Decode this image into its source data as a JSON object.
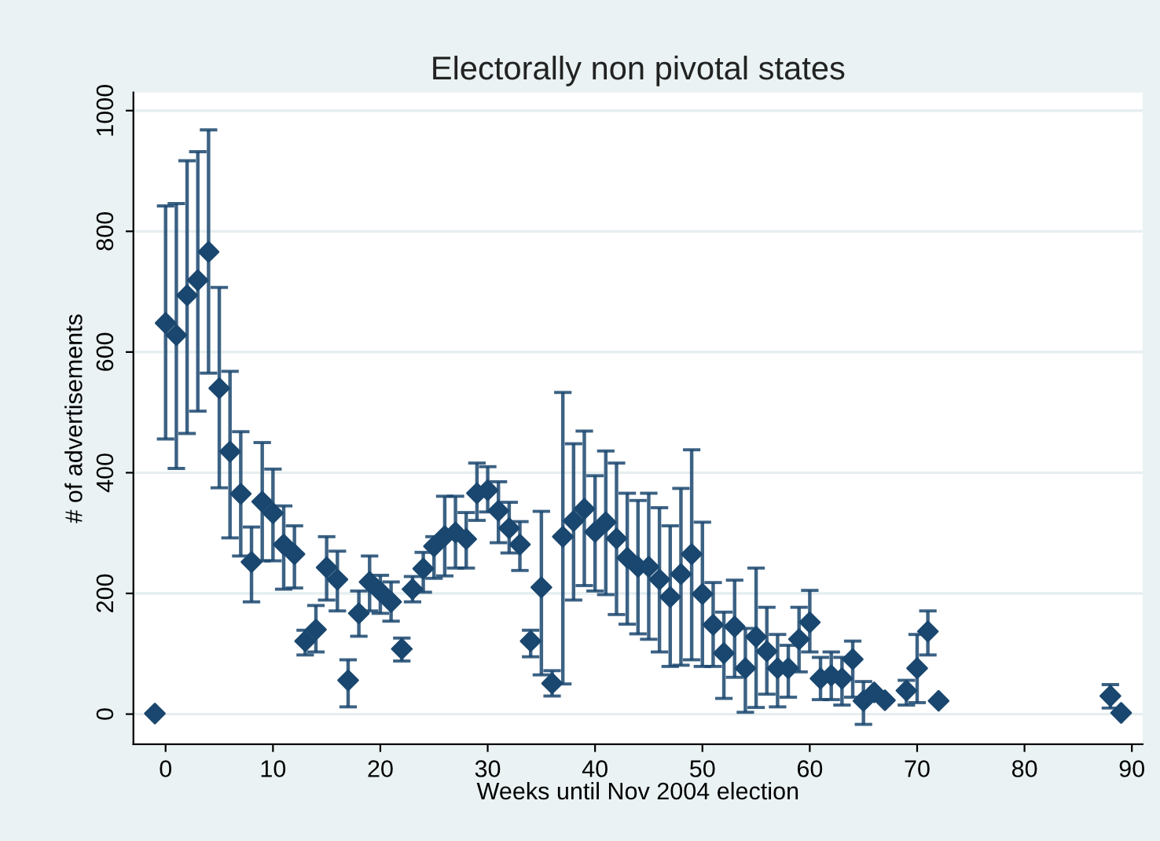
{
  "chart_data": {
    "type": "scatter",
    "title": "Electorally non pivotal states",
    "xlabel": "Weeks until Nov 2004 election",
    "ylabel": "# of advertisements",
    "x": [
      -1,
      0,
      1,
      2,
      3,
      4,
      5,
      6,
      7,
      8,
      9,
      10,
      11,
      12,
      13,
      14,
      15,
      16,
      17,
      18,
      19,
      20,
      21,
      22,
      23,
      24,
      25,
      26,
      27,
      28,
      29,
      30,
      31,
      32,
      33,
      34,
      35,
      36,
      37,
      38,
      39,
      40,
      41,
      42,
      43,
      44,
      45,
      46,
      47,
      48,
      49,
      50,
      51,
      52,
      53,
      54,
      55,
      56,
      57,
      58,
      59,
      60,
      61,
      62,
      63,
      64,
      65,
      66,
      67,
      69,
      70,
      71,
      72,
      88,
      89
    ],
    "series": [
      {
        "color": "#1a476f",
        "values": [
          1,
          648,
          628,
          694,
          719,
          766,
          540,
          435,
          365,
          252,
          352,
          333,
          281,
          265,
          121,
          140,
          243,
          223,
          56,
          167,
          219,
          203,
          186,
          108,
          207,
          241,
          278,
          295,
          301,
          290,
          366,
          371,
          337,
          308,
          281,
          121,
          210,
          51,
          294,
          320,
          340,
          302,
          318,
          291,
          259,
          244,
          244,
          223,
          194,
          232,
          265,
          199,
          148,
          101,
          145,
          76,
          128,
          104,
          76,
          76,
          124,
          152,
          59,
          64,
          59,
          91,
          22,
          36,
          23,
          39,
          76,
          137,
          22,
          30,
          2
        ],
        "errors": [
          null,
          [
            456,
            842
          ],
          [
            407,
            846
          ],
          [
            465,
            917
          ],
          [
            502,
            932
          ],
          [
            565,
            968
          ],
          [
            375,
            707
          ],
          [
            292,
            568
          ],
          [
            262,
            468
          ],
          [
            186,
            310
          ],
          [
            254,
            450
          ],
          [
            254,
            406
          ],
          [
            207,
            345
          ],
          [
            209,
            312
          ],
          [
            98,
            139
          ],
          [
            103,
            180
          ],
          [
            189,
            294
          ],
          [
            171,
            270
          ],
          [
            12,
            90
          ],
          [
            129,
            204
          ],
          [
            171,
            262
          ],
          [
            167,
            230
          ],
          [
            154,
            219
          ],
          [
            88,
            126
          ],
          [
            186,
            228
          ],
          [
            202,
            268
          ],
          [
            225,
            294
          ],
          [
            229,
            361
          ],
          [
            242,
            361
          ],
          [
            242,
            334
          ],
          [
            321,
            416
          ],
          [
            335,
            410
          ],
          [
            284,
            385
          ],
          [
            267,
            351
          ],
          [
            238,
            319
          ],
          [
            95,
            139
          ],
          [
            65,
            336
          ],
          [
            30,
            72
          ],
          [
            50,
            533
          ],
          [
            189,
            448
          ],
          [
            213,
            469
          ],
          [
            204,
            395
          ],
          [
            198,
            436
          ],
          [
            165,
            416
          ],
          [
            149,
            366
          ],
          [
            133,
            354
          ],
          [
            124,
            366
          ],
          [
            103,
            342
          ],
          [
            79,
            312
          ],
          [
            81,
            374
          ],
          [
            90,
            438
          ],
          [
            79,
            318
          ],
          [
            79,
            218
          ],
          [
            26,
            169
          ],
          [
            61,
            222
          ],
          [
            3,
            142
          ],
          [
            11,
            242
          ],
          [
            33,
            177
          ],
          [
            12,
            132
          ],
          [
            28,
            114
          ],
          [
            70,
            177
          ],
          [
            103,
            205
          ],
          [
            24,
            94
          ],
          [
            24,
            103
          ],
          [
            15,
            94
          ],
          [
            28,
            121
          ],
          [
            -17,
            54
          ],
          null,
          null,
          [
            15,
            56
          ],
          [
            19,
            132
          ],
          [
            98,
            171
          ],
          null,
          [
            10,
            49
          ],
          null
        ]
      }
    ],
    "xlim": [
      -3,
      91
    ],
    "ylim": [
      -50,
      1030
    ],
    "xticks": [
      0,
      10,
      20,
      30,
      40,
      50,
      60,
      70,
      80,
      90
    ],
    "yticks": [
      0,
      200,
      400,
      600,
      800,
      1000
    ],
    "grid": "y",
    "marker": "diamond",
    "legend": false
  }
}
